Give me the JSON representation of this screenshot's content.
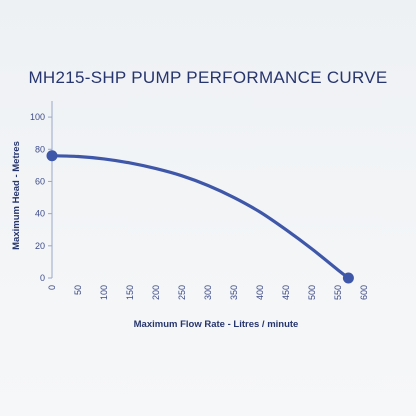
{
  "chart_data": {
    "type": "line",
    "title": "MH215-SHP PUMP PERFORMANCE CURVE",
    "xlabel": "Maximum Flow Rate - Litres / minute",
    "ylabel": "Maximum Head - Metres",
    "xlim": [
      0,
      600
    ],
    "ylim": [
      0,
      110
    ],
    "xticks": [
      "0",
      "50",
      "100",
      "150",
      "200",
      "250",
      "300",
      "350",
      "400",
      "450",
      "500",
      "550",
      "600"
    ],
    "yticks": [
      "0",
      "20",
      "40",
      "60",
      "80",
      "100"
    ],
    "grid": false,
    "series": [
      {
        "x": [
          0,
          50,
          100,
          150,
          200,
          250,
          300,
          350,
          400,
          450,
          500,
          550,
          570
        ],
        "y": [
          76,
          75.5,
          74,
          71.5,
          68,
          63.5,
          57.5,
          50,
          41,
          30,
          18,
          5,
          0
        ]
      }
    ],
    "markers": [
      {
        "x": 0,
        "y": 76
      },
      {
        "x": 570,
        "y": 0
      }
    ],
    "line_color": "#3f57a8"
  }
}
